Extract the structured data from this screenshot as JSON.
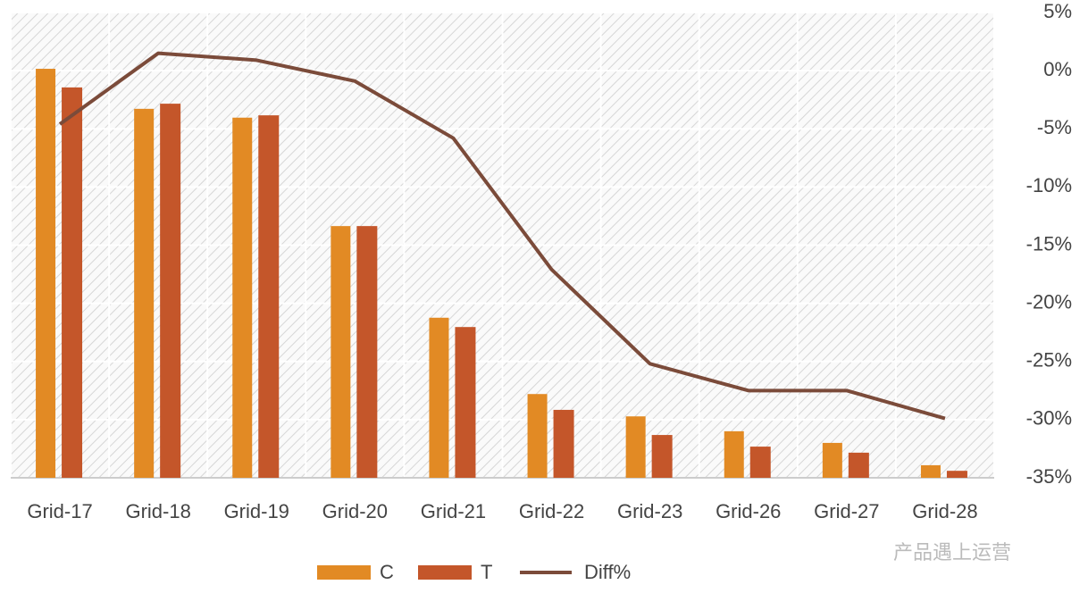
{
  "chart_data": {
    "type": "bar_line",
    "categories": [
      "Grid-17",
      "Grid-18",
      "Grid-19",
      "Grid-20",
      "Grid-21",
      "Grid-22",
      "Grid-23",
      "Grid-26",
      "Grid-27",
      "Grid-28"
    ],
    "series": [
      {
        "name": "C",
        "color": "#e28a24",
        "type": "bar",
        "values": [
          87.9,
          79.3,
          77.4,
          54.1,
          34.4,
          18.0,
          13.2,
          10.0,
          7.5,
          2.7
        ]
      },
      {
        "name": "T",
        "color": "#c4562a",
        "type": "bar",
        "values": [
          83.9,
          80.4,
          77.9,
          54.1,
          32.4,
          14.6,
          9.2,
          6.7,
          5.4,
          1.5
        ]
      },
      {
        "name": "Diff%",
        "color": "#7b4b3a",
        "type": "line",
        "axis": "y2",
        "values": [
          -4.6,
          1.5,
          0.9,
          -0.9,
          -5.8,
          -17.1,
          -25.2,
          -27.5,
          -27.5,
          -29.9
        ]
      }
    ],
    "ylim": [
      0,
      100
    ],
    "y2lim": [
      -35,
      5
    ],
    "y2ticks": [
      {
        "value": 5,
        "label": "5%"
      },
      {
        "value": 0,
        "label": "0%"
      },
      {
        "value": -5,
        "label": "-5%"
      },
      {
        "value": -10,
        "label": "-10%"
      },
      {
        "value": -15,
        "label": "-15%"
      },
      {
        "value": -20,
        "label": "-20%"
      },
      {
        "value": -25,
        "label": "-25%"
      },
      {
        "value": -30,
        "label": "-30%"
      },
      {
        "value": -35,
        "label": "-35%"
      }
    ],
    "grid": true,
    "legend": "bottom",
    "watermark": "产品遇上运营"
  }
}
